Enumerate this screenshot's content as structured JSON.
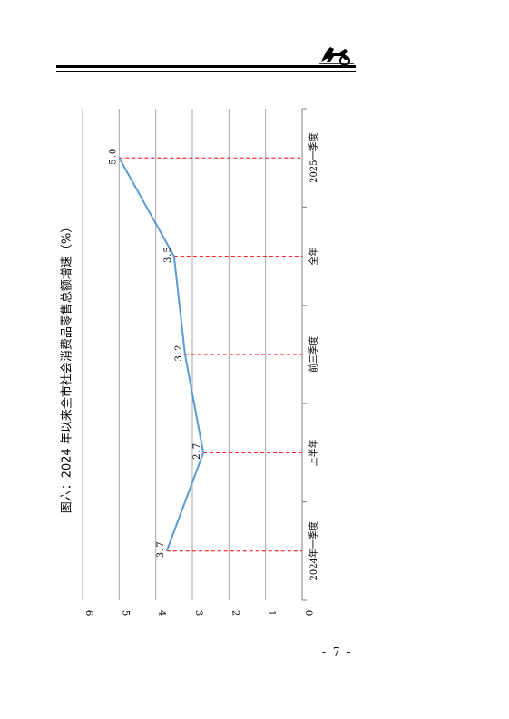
{
  "page": {
    "page_number": "- 7 -"
  },
  "chart_data": {
    "type": "line",
    "title": "图六：2024 年以来全市社会消费品零售总额增速（%）",
    "categories": [
      "2024年一季度",
      "上半年",
      "前三季度",
      "全年",
      "2025一季度"
    ],
    "series": [
      {
        "values": [
          3.7,
          2.7,
          3.2,
          3.5,
          5.0
        ]
      }
    ],
    "data_labels": [
      "3.7",
      "2.7",
      "3.2",
      "3.5",
      "5.0"
    ],
    "yticks": [
      "0",
      "1",
      "2",
      "3",
      "4",
      "5",
      "6"
    ],
    "ylim": [
      0,
      6
    ],
    "grid": true,
    "orientation": "rotated-90-ccw",
    "colors": {
      "line": "#5b9bd5",
      "dropline": "#ff0000",
      "grid": "#a6a6a6"
    }
  }
}
